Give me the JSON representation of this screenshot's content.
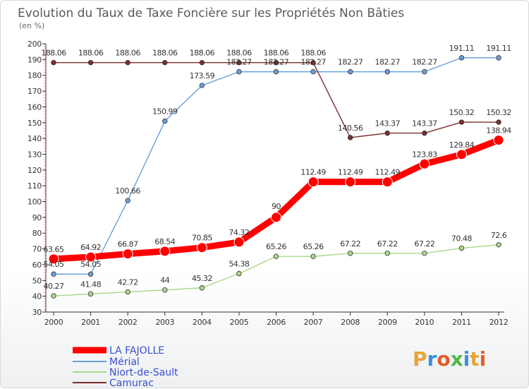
{
  "chart_data": {
    "type": "line",
    "title": "Evolution du Taux de Taxe Foncière sur les Propriétés Non Bâties",
    "unit_label": "(en %)",
    "xlabel": "",
    "ylabel": "",
    "x": [
      "2000",
      "2001",
      "2002",
      "2003",
      "2004",
      "2005",
      "2006",
      "2007",
      "2008",
      "2009",
      "2010",
      "2011",
      "2012"
    ],
    "ylim": [
      30,
      200
    ],
    "yticks": [
      30,
      40,
      50,
      60,
      70,
      80,
      90,
      100,
      110,
      120,
      130,
      140,
      150,
      160,
      170,
      180,
      190,
      200
    ],
    "grid": false,
    "legend_position": "bottom-left",
    "series": [
      {
        "name": "LA FAJOLLE",
        "color": "#ff0000",
        "values": [
          63.65,
          64.92,
          66.87,
          68.54,
          70.85,
          74.32,
          90,
          112.49,
          112.49,
          112.49,
          123.83,
          129.84,
          138.94
        ],
        "labels": [
          "63.65",
          "64.92",
          "66.87",
          "68.54",
          "70.85",
          "74.32",
          "90",
          "112.49",
          "112.49",
          "112.49",
          "123.83",
          "129.84",
          "138.94"
        ]
      },
      {
        "name": "Mérial",
        "color": "#6aa0d8",
        "values": [
          54.05,
          54.05,
          100.66,
          150.99,
          173.59,
          182.27,
          182.27,
          182.27,
          182.27,
          182.27,
          182.27,
          191.11,
          191.11
        ],
        "labels": [
          "54.05",
          "54.05",
          "100.66",
          "150.99",
          "173.59",
          "182.27",
          "182.27",
          "182.27",
          "182.27",
          "182.27",
          "182.27",
          "191.11",
          "191.11"
        ]
      },
      {
        "name": "Niort-de-Sault",
        "color": "#a8d88a",
        "values": [
          40.27,
          41.48,
          42.72,
          44,
          45.32,
          54.38,
          65.26,
          65.26,
          67.22,
          67.22,
          67.22,
          70.48,
          72.6
        ],
        "labels": [
          "40.27",
          "41.48",
          "42.72",
          "44",
          "45.32",
          "54.38",
          "65.26",
          "65.26",
          "67.22",
          "67.22",
          "67.22",
          "70.48",
          "72.6"
        ]
      },
      {
        "name": "Camurac",
        "color": "#7a2e2e",
        "values": [
          188.06,
          188.06,
          188.06,
          188.06,
          188.06,
          188.06,
          188.06,
          188.06,
          140.56,
          143.37,
          143.37,
          150.32,
          150.32
        ],
        "labels": [
          "188.06",
          "188.06",
          "188.06",
          "188.06",
          "188.06",
          "188.06",
          "188.06",
          "188.06",
          "140.56",
          "143.37",
          "143.37",
          "150.32",
          "150.32"
        ]
      }
    ]
  },
  "logo": {
    "text": "Proxiti"
  }
}
